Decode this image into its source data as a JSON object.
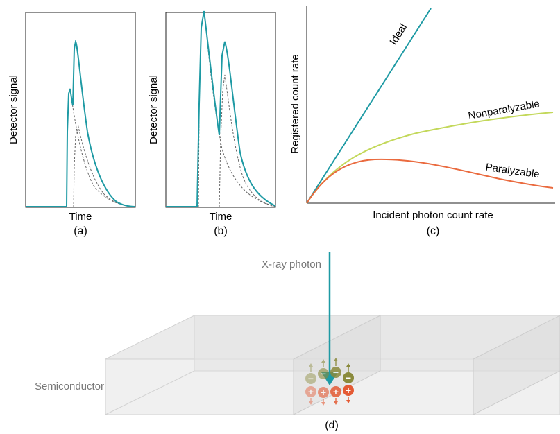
{
  "colors": {
    "signal": "#1e9aa4",
    "dashed": "#555555",
    "ideal": "#1e9aa4",
    "nonparalyzable": "#c3d85a",
    "paralyzable": "#ea6a3e",
    "electron": "#8a8a3c",
    "hole": "#e45a34",
    "slab": "#e3e3e3",
    "slab_edge": "#cfcfcf"
  },
  "panel_a": {
    "ylabel": "Detector signal",
    "xlabel": "Time",
    "caption": "(a)"
  },
  "panel_b": {
    "ylabel": "Detector signal",
    "xlabel": "Time",
    "caption": "(b)"
  },
  "panel_c": {
    "ylabel": "Registered count rate",
    "xlabel": "Incident photon count rate",
    "caption": "(c)",
    "curves": {
      "ideal": "Ideal",
      "nonparalyzable": "Nonparalyzable",
      "paralyzable": "Paralyzable"
    }
  },
  "panel_d": {
    "photon_label": "X-ray photon",
    "material_label": "Semiconductor",
    "caption": "(d)",
    "electron_symbol": "−",
    "hole_symbol": "+"
  }
}
